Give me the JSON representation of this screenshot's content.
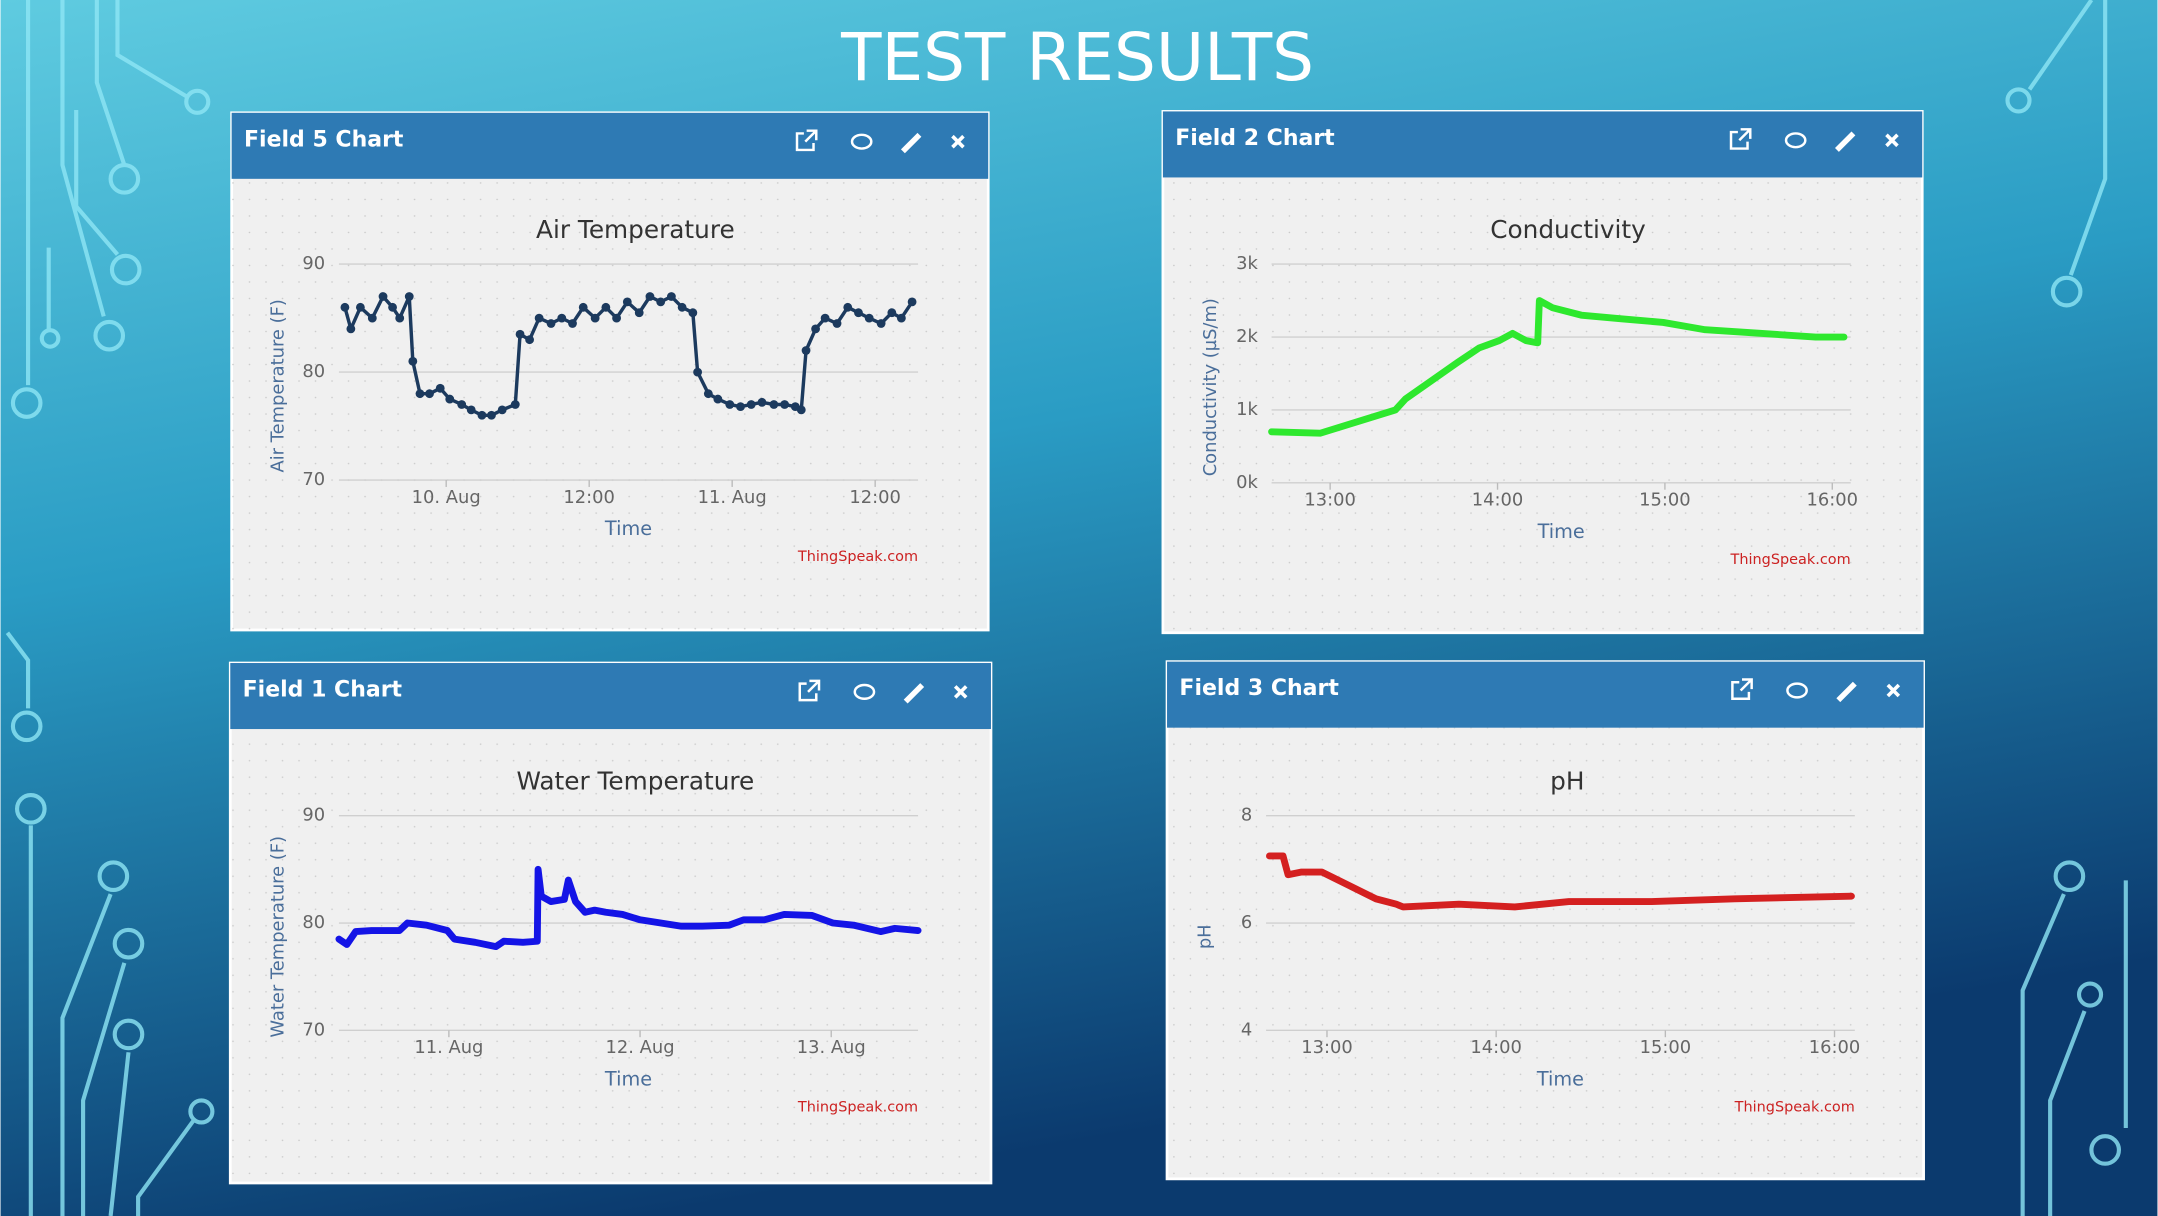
{
  "title": "TEST RESULTS",
  "chart_data": [
    {
      "type": "line",
      "panel_title": "Field 5 Chart",
      "title": "Air Temperature",
      "xlabel": "Time",
      "ylabel": "Air Temperature (F)",
      "credit": "ThingSpeak.com",
      "color": "#1c3a5e",
      "marker": true,
      "x": [
        15.5,
        16.0,
        16.8,
        17.8,
        18.7,
        19.5,
        20.1,
        20.9,
        21.2,
        21.8,
        22.6,
        23.5,
        24.3,
        25.3,
        26.1,
        27.0,
        27.8,
        28.7,
        29.8,
        30.2,
        31.0,
        31.8,
        32.8,
        33.7,
        34.6,
        35.5,
        36.5,
        37.4,
        38.3,
        39.2,
        40.2,
        41.1,
        42.0,
        42.9,
        43.8,
        44.7,
        45.1,
        46.0,
        46.8,
        47.8,
        48.7,
        49.6,
        50.5,
        51.5,
        52.4,
        53.3,
        53.8,
        54.2,
        55.0,
        55.8,
        56.8,
        57.7,
        58.6,
        59.5,
        60.5,
        61.4,
        62.2,
        63.1
      ],
      "values": [
        86,
        84,
        86,
        85,
        87,
        86,
        85,
        87,
        81,
        78,
        78,
        78.5,
        77.5,
        77,
        76.5,
        76,
        76,
        76.5,
        77,
        83.5,
        83,
        85,
        84.5,
        85,
        84.5,
        86,
        85,
        86,
        85,
        86.5,
        85.5,
        87,
        86.5,
        87,
        86,
        85.5,
        80,
        78,
        77.5,
        77,
        76.8,
        77,
        77.2,
        77,
        77,
        76.8,
        76.5,
        82,
        84,
        85,
        84.5,
        86,
        85.5,
        85,
        84.5,
        85.5,
        85,
        86.5
      ],
      "xlim": [
        15,
        63.6
      ],
      "xticks": [
        {
          "value": 24,
          "label": "10. Aug"
        },
        {
          "value": 36,
          "label": "12:00"
        },
        {
          "value": 48,
          "label": "11. Aug"
        },
        {
          "value": 60,
          "label": "12:00"
        }
      ],
      "ylim": [
        70,
        90
      ],
      "yticks": [
        70,
        80,
        90
      ]
    },
    {
      "type": "line",
      "panel_title": "Field 2 Chart",
      "title": "Conductivity",
      "xlabel": "Time",
      "ylabel": "Conductivity (µS/m)",
      "credit": "ThingSpeak.com",
      "color": "#2ee82e",
      "marker": false,
      "x": [
        12.65,
        12.94,
        13.39,
        13.45,
        13.76,
        13.89,
        14.01,
        14.09,
        14.17,
        14.24,
        14.25,
        14.33,
        14.5,
        14.74,
        14.99,
        15.24,
        15.57,
        15.9,
        16.07
      ],
      "values": [
        700,
        680,
        1000,
        1150,
        1650,
        1850,
        1950,
        2050,
        1950,
        1920,
        2500,
        2400,
        2300,
        2250,
        2200,
        2100,
        2050,
        2000,
        2000
      ],
      "xlim": [
        12.65,
        16.11
      ],
      "xticks": [
        {
          "value": 13,
          "label": "13:00"
        },
        {
          "value": 14,
          "label": "14:00"
        },
        {
          "value": 15,
          "label": "15:00"
        },
        {
          "value": 16,
          "label": "16:00"
        }
      ],
      "ylim": [
        0,
        3000
      ],
      "yticks": [
        {
          "value": 0,
          "label": "0k"
        },
        {
          "value": 1000,
          "label": "1k"
        },
        {
          "value": 2000,
          "label": "2k"
        },
        {
          "value": 3000,
          "label": "3k"
        }
      ]
    },
    {
      "type": "line",
      "panel_title": "Field 1 Chart",
      "title": "Water Temperature",
      "xlabel": "Time",
      "ylabel": "Water Temperature (F)",
      "credit": "ThingSpeak.com",
      "color": "#1414e6",
      "marker": false,
      "x": [
        10.2,
        11.2,
        12.3,
        14.3,
        17.8,
        18.8,
        21.2,
        23.8,
        24.7,
        27.3,
        29.9,
        30.9,
        33.3,
        35.1,
        35.2,
        35.6,
        36.8,
        38.5,
        39.0,
        39.9,
        41.1,
        42.3,
        43.7,
        45.8,
        48.0,
        50.6,
        53.2,
        55.8,
        59.2,
        61.0,
        63.6,
        66.1,
        69.6,
        72.2,
        74.8,
        78.2,
        80.0,
        82.9
      ],
      "values": [
        78.5,
        78,
        79.2,
        79.3,
        79.3,
        80,
        79.8,
        79.3,
        78.5,
        78.2,
        77.8,
        78.3,
        78.2,
        78.3,
        85,
        82.5,
        82,
        82.2,
        84,
        82,
        81,
        81.2,
        81,
        80.8,
        80.3,
        80,
        79.7,
        79.7,
        79.8,
        80.3,
        80.3,
        80.8,
        80.7,
        80,
        79.8,
        79.2,
        79.5,
        79.3
      ],
      "xlim": [
        10.2,
        82.9
      ],
      "xticks": [
        {
          "value": 24,
          "label": "11. Aug"
        },
        {
          "value": 48,
          "label": "12. Aug"
        },
        {
          "value": 72,
          "label": "13. Aug"
        }
      ],
      "ylim": [
        70,
        90
      ],
      "yticks": [
        70,
        80,
        90
      ]
    },
    {
      "type": "line",
      "panel_title": "Field 3 Chart",
      "title": "pH",
      "xlabel": "Time",
      "ylabel": "pH",
      "credit": "ThingSpeak.com",
      "color": "#d42020",
      "marker": false,
      "x": [
        12.66,
        12.74,
        12.77,
        12.85,
        12.97,
        13.13,
        13.29,
        13.41,
        13.45,
        13.78,
        14.11,
        14.43,
        14.92,
        15.41,
        16.1
      ],
      "values": [
        7.25,
        7.25,
        6.9,
        6.95,
        6.95,
        6.7,
        6.45,
        6.35,
        6.3,
        6.35,
        6.3,
        6.4,
        6.4,
        6.45,
        6.5
      ],
      "xlim": [
        12.64,
        16.12
      ],
      "xticks": [
        {
          "value": 13,
          "label": "13:00"
        },
        {
          "value": 14,
          "label": "14:00"
        },
        {
          "value": 15,
          "label": "15:00"
        },
        {
          "value": 16,
          "label": "16:00"
        }
      ],
      "ylim": [
        4,
        8
      ],
      "yticks": [
        4,
        6,
        8
      ]
    }
  ]
}
